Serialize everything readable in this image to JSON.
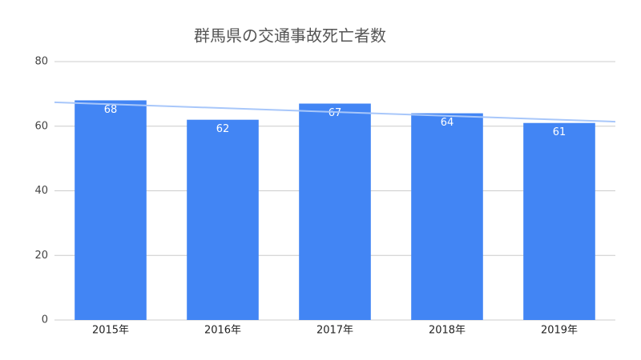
{
  "chart_data": {
    "type": "bar",
    "title": "群馬県の交通事故死亡者数",
    "categories": [
      "2015年",
      "2016年",
      "2017年",
      "2018年",
      "2019年"
    ],
    "values": [
      68,
      62,
      67,
      64,
      61
    ],
    "color": "#4285f4",
    "ylim": [
      0,
      80
    ],
    "yticks": [
      0,
      20,
      40,
      60,
      80
    ],
    "grid": true,
    "trendline": true,
    "trendline_color": "#a8c7fa"
  }
}
